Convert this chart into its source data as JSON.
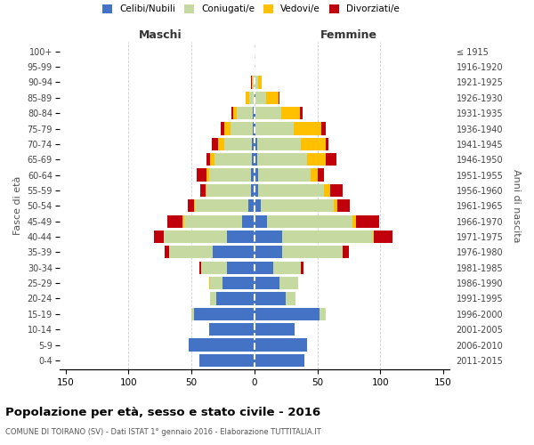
{
  "age_groups": [
    "0-4",
    "5-9",
    "10-14",
    "15-19",
    "20-24",
    "25-29",
    "30-34",
    "35-39",
    "40-44",
    "45-49",
    "50-54",
    "55-59",
    "60-64",
    "65-69",
    "70-74",
    "75-79",
    "80-84",
    "85-89",
    "90-94",
    "95-99",
    "100+"
  ],
  "birth_years": [
    "2011-2015",
    "2006-2010",
    "2001-2005",
    "1996-2000",
    "1991-1995",
    "1986-1990",
    "1981-1985",
    "1976-1980",
    "1971-1975",
    "1966-1970",
    "1961-1965",
    "1956-1960",
    "1951-1955",
    "1946-1950",
    "1941-1945",
    "1936-1940",
    "1931-1935",
    "1926-1930",
    "1921-1925",
    "1916-1920",
    "≤ 1915"
  ],
  "male_celibe": [
    44,
    52,
    36,
    48,
    30,
    25,
    22,
    33,
    22,
    10,
    5,
    3,
    3,
    2,
    2,
    1,
    1,
    0,
    0,
    0,
    0
  ],
  "male_coniugato": [
    0,
    0,
    0,
    2,
    5,
    10,
    20,
    35,
    50,
    46,
    42,
    35,
    33,
    30,
    22,
    18,
    13,
    4,
    1,
    0,
    0
  ],
  "male_vedovo": [
    0,
    0,
    0,
    0,
    0,
    1,
    0,
    0,
    0,
    1,
    1,
    1,
    2,
    3,
    5,
    5,
    3,
    3,
    1,
    0,
    0
  ],
  "male_divorziato": [
    0,
    0,
    0,
    0,
    0,
    0,
    2,
    3,
    8,
    12,
    5,
    4,
    8,
    3,
    5,
    3,
    1,
    0,
    1,
    0,
    0
  ],
  "fem_nubile": [
    40,
    42,
    32,
    52,
    25,
    20,
    15,
    22,
    22,
    10,
    5,
    3,
    3,
    2,
    2,
    1,
    1,
    1,
    0,
    0,
    0
  ],
  "fem_coniugata": [
    0,
    0,
    0,
    5,
    8,
    15,
    22,
    48,
    72,
    68,
    58,
    52,
    42,
    40,
    35,
    30,
    20,
    8,
    3,
    0,
    0
  ],
  "fem_vedova": [
    0,
    0,
    0,
    0,
    0,
    0,
    0,
    0,
    1,
    3,
    3,
    5,
    5,
    15,
    20,
    22,
    15,
    10,
    3,
    0,
    0
  ],
  "fem_divorziata": [
    0,
    0,
    0,
    0,
    0,
    0,
    2,
    5,
    15,
    18,
    10,
    10,
    5,
    8,
    2,
    4,
    2,
    1,
    0,
    0,
    0
  ],
  "colors": {
    "celibe_nubile": "#4472c4",
    "coniugato": "#c5d9a0",
    "vedovo": "#ffc000",
    "divorziato": "#c0000b"
  },
  "title": "Popolazione per età, sesso e stato civile - 2016",
  "subtitle": "COMUNE DI TOIRANO (SV) - Dati ISTAT 1° gennaio 2016 - Elaborazione TUTTITALIA.IT",
  "xlabel_left": "Maschi",
  "xlabel_right": "Femmine",
  "ylabel_left": "Fasce di età",
  "ylabel_right": "Anni di nascita",
  "xlim": 155,
  "background_color": "#ffffff",
  "grid_color": "#cccccc"
}
